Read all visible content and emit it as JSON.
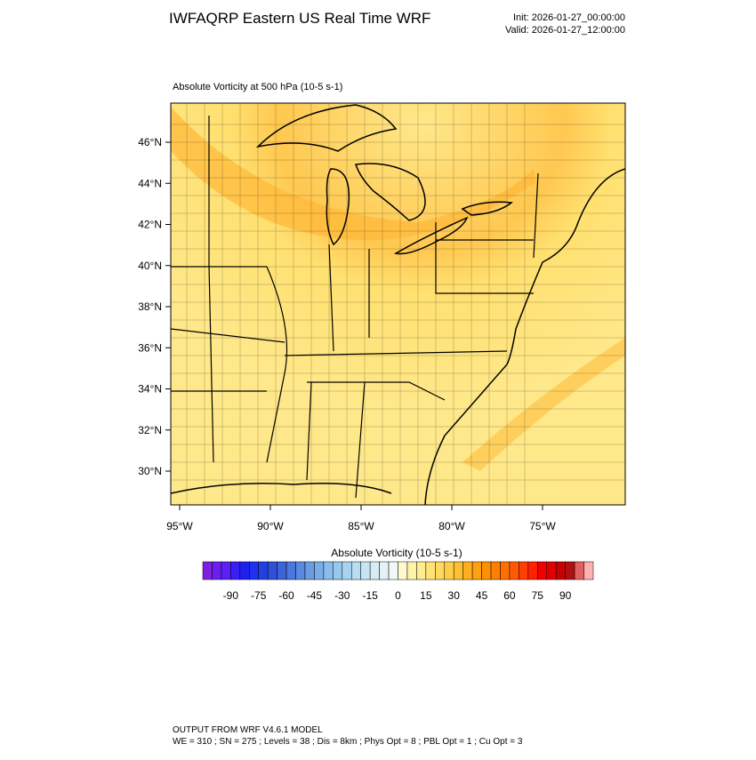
{
  "header": {
    "title": "IWFAQRP Eastern US Real Time WRF",
    "init": "Init: 2026-01-27_00:00:00",
    "valid": "Valid: 2026-01-27_12:00:00"
  },
  "plot": {
    "subtitle": "Absolute Vorticity at 500 hPa   (10-5 s-1)",
    "lat_labels": [
      "46°N",
      "44°N",
      "42°N",
      "40°N",
      "38°N",
      "36°N",
      "34°N",
      "32°N",
      "30°N"
    ],
    "lon_labels": [
      "95°W",
      "90°W",
      "85°W",
      "80°W",
      "75°W"
    ]
  },
  "colorbar": {
    "title": "Absolute Vorticity  (10-5 s-1)",
    "ticks": [
      -90,
      -75,
      -60,
      -45,
      -30,
      -15,
      0,
      15,
      30,
      45,
      60,
      75,
      90
    ],
    "range": [
      -105,
      105
    ],
    "colors": [
      "#7d1fe0",
      "#6a1ff0",
      "#5a20f5",
      "#3a1ff5",
      "#1f1ff0",
      "#1f30f0",
      "#2040e0",
      "#3050d8",
      "#3a64d8",
      "#4a78dc",
      "#5a8ae0",
      "#6a9ce4",
      "#78aee8",
      "#88bcec",
      "#98c8ee",
      "#a8d2f0",
      "#b8dcf2",
      "#c8e4f4",
      "#d8ecf6",
      "#e4f2f8",
      "#f0f8fa",
      "#fffacd",
      "#fff3a8",
      "#ffec90",
      "#ffe278",
      "#ffd860",
      "#ffcc48",
      "#ffc030",
      "#ffb020",
      "#ffa010",
      "#ff9000",
      "#ff8000",
      "#ff7000",
      "#ff5a00",
      "#ff4000",
      "#ff2000",
      "#f00000",
      "#e00000",
      "#c80000",
      "#b01010",
      "#e06060",
      "#ffb0b0"
    ]
  },
  "footer": {
    "lines": [
      "OUTPUT FROM WRF V4.6.1 MODEL",
      "WE = 310 ; SN = 275 ; Levels = 38 ; Dis = 8km ; Phys Opt = 8 ; PBL Opt = 1 ; Cu Opt = 3"
    ]
  }
}
